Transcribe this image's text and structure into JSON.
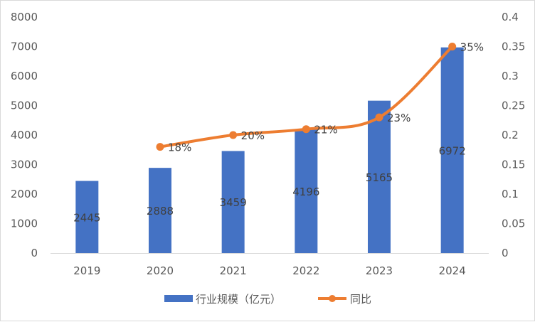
{
  "chart_data": {
    "type": "bar+line",
    "categories": [
      "2019",
      "2020",
      "2021",
      "2022",
      "2023",
      "2024"
    ],
    "series": [
      {
        "name": "行业规模（亿元）",
        "type": "bar",
        "axis": "left",
        "color": "#4472C4",
        "values": [
          2445,
          2888,
          3459,
          4196,
          5165,
          6972
        ],
        "labels": [
          "2445",
          "2888",
          "3459",
          "4196",
          "5165",
          "6972"
        ]
      },
      {
        "name": "同比",
        "type": "line",
        "axis": "right",
        "color": "#ED7D31",
        "values": [
          null,
          0.18,
          0.2,
          0.21,
          0.23,
          0.35
        ],
        "labels": [
          "",
          "18%",
          "20%",
          "21%",
          "23%",
          "35%"
        ]
      }
    ],
    "y_left": {
      "range": [
        0,
        8000
      ],
      "ticks": [
        "0",
        "1000",
        "2000",
        "3000",
        "4000",
        "5000",
        "6000",
        "7000",
        "8000"
      ]
    },
    "y_right": {
      "range": [
        0,
        0.4
      ],
      "ticks": [
        "0",
        "0.05",
        "0.1",
        "0.15",
        "0.2",
        "0.25",
        "0.3",
        "0.35",
        "0.4"
      ]
    },
    "grid": false,
    "legend": "bottom"
  }
}
